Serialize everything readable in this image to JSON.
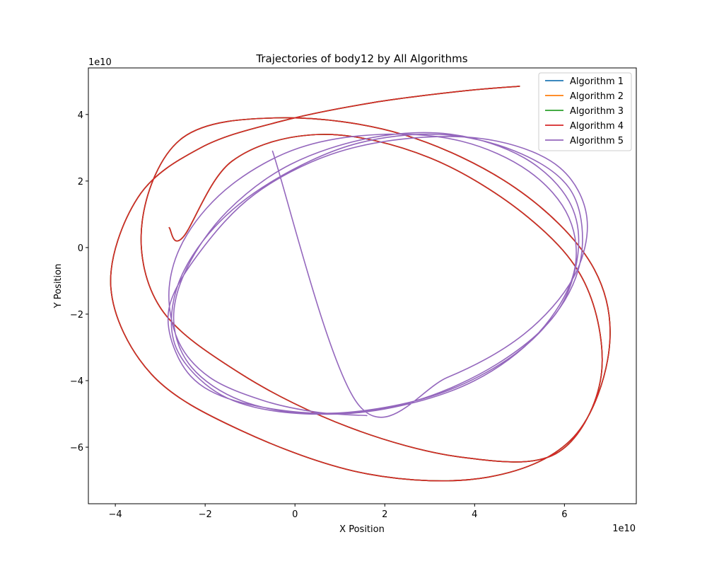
{
  "chart_data": {
    "type": "line",
    "title": "Trajectories of body12 by All Algorithms",
    "xlabel": "X Position",
    "ylabel": "Y Position",
    "x_offset_text": "1e10",
    "y_offset_text": "1e10",
    "xlim": [
      -4.6,
      7.6
    ],
    "ylim": [
      -7.7,
      5.4
    ],
    "x_ticks": [
      -4,
      -2,
      0,
      2,
      4,
      6
    ],
    "y_ticks": [
      -6,
      -4,
      -2,
      0,
      2,
      4
    ],
    "x_tick_labels": [
      "−4",
      "−2",
      "0",
      "2",
      "4",
      "6"
    ],
    "y_tick_labels": [
      "−6",
      "−4",
      "−2",
      "0",
      "2",
      "4"
    ],
    "grid": false,
    "legend_position": "upper right",
    "series": [
      {
        "name": "Algorithm 1",
        "color": "#1f77b4",
        "x": [
          5.0,
          3.7,
          1.7,
          -0.3,
          -2.1,
          -3.5,
          -4.1,
          -3.2,
          -1.2,
          1.6,
          4.3,
          6.2,
          7.0,
          6.6,
          4.9,
          2.4,
          -0.3,
          -2.5,
          -3.4,
          -3.0,
          -1.2,
          1.2,
          3.7,
          5.8,
          6.8,
          6.5,
          5.2,
          3.0,
          0.6,
          -1.4,
          -2.5,
          -2.8
        ],
        "y": [
          4.85,
          4.7,
          4.35,
          3.8,
          3.0,
          1.5,
          -1.2,
          -3.8,
          -5.5,
          -6.8,
          -6.9,
          -5.7,
          -3.0,
          -0.5,
          1.8,
          3.4,
          3.9,
          3.3,
          0.8,
          -1.8,
          -3.8,
          -5.4,
          -6.3,
          -6.2,
          -4.0,
          -1.2,
          0.9,
          2.7,
          3.4,
          2.6,
          0.3,
          0.6
        ]
      },
      {
        "name": "Algorithm 2",
        "color": "#ff7f0e",
        "x": [
          5.0,
          3.7,
          1.7,
          -0.3,
          -2.1,
          -3.5,
          -4.1,
          -3.2,
          -1.2,
          1.6,
          4.3,
          6.2,
          7.0,
          6.6,
          4.9,
          2.4,
          -0.3,
          -2.5,
          -3.4,
          -3.0,
          -1.2,
          1.2,
          3.7,
          5.8,
          6.8,
          6.5,
          5.2,
          3.0,
          0.6,
          -1.4,
          -2.5,
          -2.8
        ],
        "y": [
          4.85,
          4.7,
          4.35,
          3.8,
          3.0,
          1.5,
          -1.2,
          -3.8,
          -5.5,
          -6.8,
          -6.9,
          -5.7,
          -3.0,
          -0.5,
          1.8,
          3.4,
          3.9,
          3.3,
          0.8,
          -1.8,
          -3.8,
          -5.4,
          -6.3,
          -6.2,
          -4.0,
          -1.2,
          0.9,
          2.7,
          3.4,
          2.6,
          0.3,
          0.6
        ]
      },
      {
        "name": "Algorithm 3",
        "color": "#2ca02c",
        "x": [
          5.0,
          3.7,
          1.7,
          -0.3,
          -2.1,
          -3.5,
          -4.1,
          -3.2,
          -1.2,
          1.6,
          4.3,
          6.2,
          7.0,
          6.6,
          4.9,
          2.4,
          -0.3,
          -2.5,
          -3.4,
          -3.0,
          -1.2,
          1.2,
          3.7,
          5.8,
          6.8,
          6.5,
          5.2,
          3.0,
          0.6,
          -1.4,
          -2.5,
          -2.8
        ],
        "y": [
          4.85,
          4.7,
          4.35,
          3.8,
          3.0,
          1.5,
          -1.2,
          -3.8,
          -5.5,
          -6.8,
          -6.9,
          -5.7,
          -3.0,
          -0.5,
          1.8,
          3.4,
          3.9,
          3.3,
          0.8,
          -1.8,
          -3.8,
          -5.4,
          -6.3,
          -6.2,
          -4.0,
          -1.2,
          0.9,
          2.7,
          3.4,
          2.6,
          0.3,
          0.6
        ]
      },
      {
        "name": "Algorithm 4",
        "color": "#d62728",
        "x": [
          5.0,
          3.7,
          1.7,
          -0.3,
          -2.1,
          -3.5,
          -4.1,
          -3.2,
          -1.2,
          1.6,
          4.3,
          6.2,
          7.0,
          6.6,
          4.9,
          2.4,
          -0.3,
          -2.5,
          -3.4,
          -3.0,
          -1.2,
          1.2,
          3.7,
          5.8,
          6.8,
          6.5,
          5.2,
          3.0,
          0.6,
          -1.4,
          -2.5,
          -2.8
        ],
        "y": [
          4.85,
          4.7,
          4.35,
          3.8,
          3.0,
          1.5,
          -1.2,
          -3.8,
          -5.5,
          -6.8,
          -6.9,
          -5.7,
          -3.0,
          -0.5,
          1.8,
          3.4,
          3.9,
          3.3,
          0.8,
          -1.8,
          -3.8,
          -5.4,
          -6.3,
          -6.2,
          -4.0,
          -1.2,
          0.9,
          2.7,
          3.4,
          2.6,
          0.3,
          0.6
        ]
      },
      {
        "name": "Algorithm 5",
        "color": "#9467bd",
        "x": [
          1.6,
          0.5,
          -0.7,
          -1.9,
          -2.6,
          -2.8,
          -2.4,
          -1.4,
          0.1,
          1.9,
          3.7,
          5.2,
          6.1,
          6.2,
          5.4,
          4.0,
          2.2,
          0.4,
          -1.2,
          -2.3,
          -2.7,
          -2.4,
          -1.5,
          -0.1,
          1.7,
          3.5,
          5.1,
          6.1,
          6.3,
          5.8,
          4.5,
          2.7,
          0.8,
          -0.9,
          -2.0,
          -2.7,
          -2.6,
          -1.8,
          -0.5,
          1.3,
          3.2,
          4.9,
          6.1,
          6.4,
          6.0,
          4.9,
          3.2,
          1.2,
          -0.5,
          -1.9,
          -2.6,
          -2.8,
          -2.1,
          -0.9,
          0.8,
          2.7,
          4.5,
          5.9,
          6.5,
          6.2,
          5.1,
          3.4,
          1.4,
          -0.5
        ],
        "y": [
          -5.05,
          -4.95,
          -4.6,
          -3.9,
          -2.8,
          -1.2,
          0.4,
          1.9,
          3.0,
          3.4,
          3.2,
          2.3,
          0.9,
          -0.8,
          -2.6,
          -4.0,
          -4.8,
          -5.0,
          -4.6,
          -3.6,
          -2.2,
          -0.6,
          1.1,
          2.5,
          3.3,
          3.4,
          2.7,
          1.4,
          -0.2,
          -2.0,
          -3.5,
          -4.6,
          -5.0,
          -4.8,
          -4.1,
          -2.8,
          -1.1,
          0.6,
          2.0,
          3.1,
          3.4,
          2.9,
          1.8,
          0.1,
          -1.6,
          -3.2,
          -4.4,
          -4.95,
          -4.85,
          -4.3,
          -3.3,
          -1.8,
          -0.1,
          1.6,
          2.8,
          3.3,
          3.2,
          2.4,
          0.9,
          -0.9,
          -2.6,
          -3.9,
          -4.7,
          2.9
        ]
      }
    ]
  }
}
